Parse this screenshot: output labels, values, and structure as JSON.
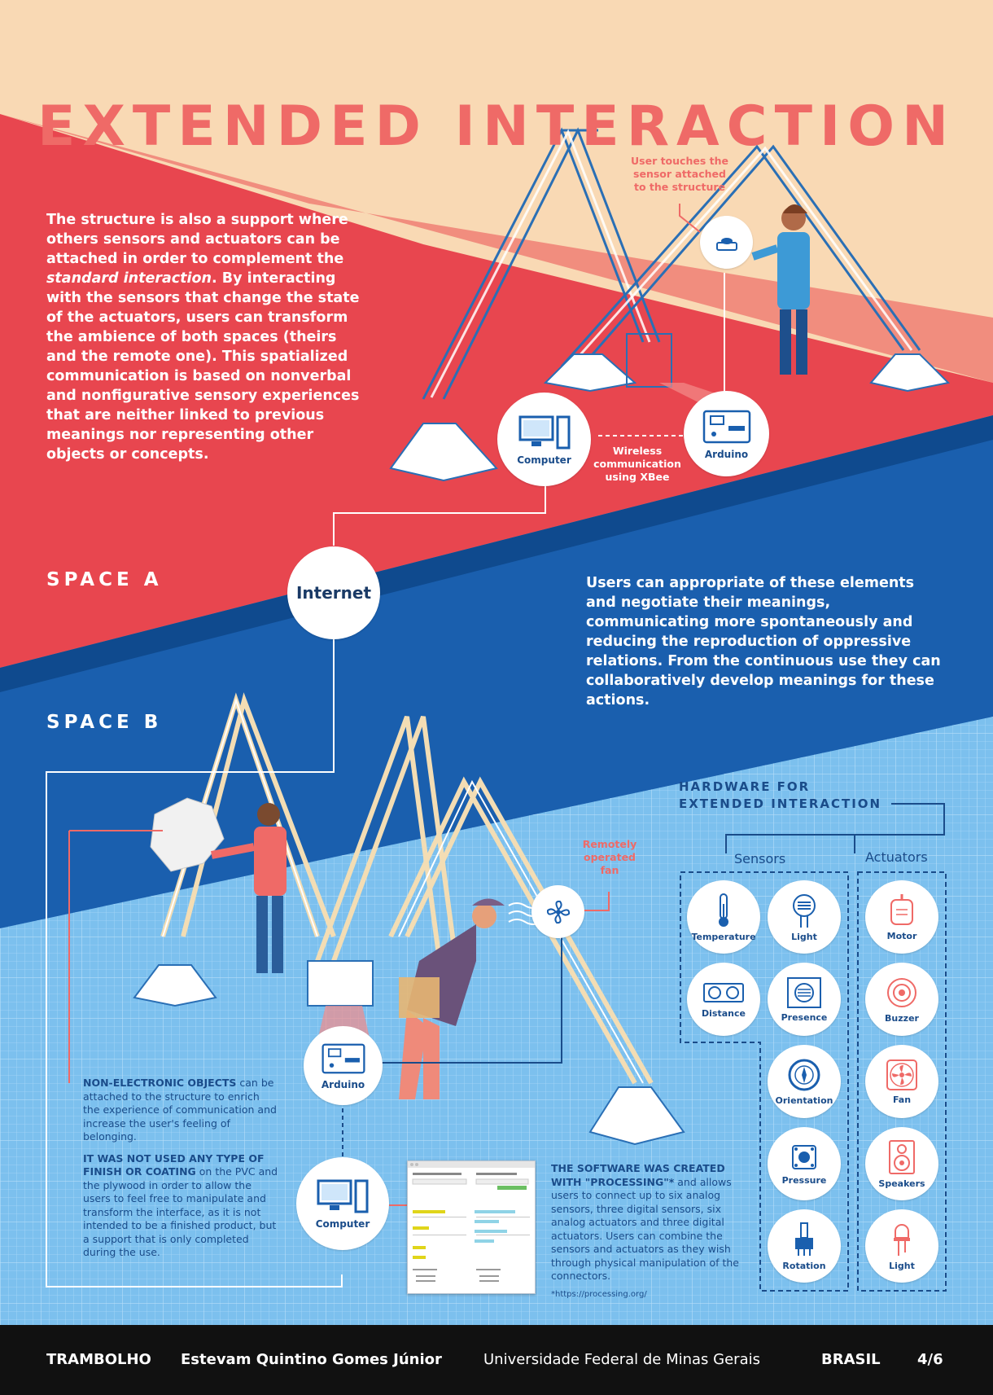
{
  "title": "EXTENDED INTERACTION",
  "intro": {
    "before_italic": "The structure is also a support where others sensors and actuators can be attached in order to complement the ",
    "italic": "standard interaction",
    "after_italic": ". By interacting with the sensors that change the state of the actuators, users can transform the ambience of both spaces (theirs and the remote one). This spatialized communication is based on nonverbal and nonfigurative sensory experiences that are neither linked to previous meanings nor representing other objects or concepts."
  },
  "space_a": "SPACE A",
  "space_b": "SPACE B",
  "appropriation_text": "Users can appropriate of these elements and negotiate their meanings, communicating more spontaneously and reducing the reproduction of oppressive relations. From the continuous use they can collaboratively develop meanings for these actions.",
  "nodes": {
    "computer_a": "Computer",
    "arduino_a": "Arduino",
    "internet": "Internet",
    "arduino_b": "Arduino",
    "computer_b": "Computer"
  },
  "callouts": {
    "user_touch": "User touches the sensor attached to the structure",
    "wireless": "Wireless communication using XBee",
    "remote_fan": "Remotely operated fan"
  },
  "hardware": {
    "title_line1": "HARDWARE FOR",
    "title_line2": "EXTENDED INTERACTION",
    "sensors_label": "Sensors",
    "actuators_label": "Actuators",
    "sensors": [
      {
        "label": "Temperature",
        "icon": "thermometer-icon"
      },
      {
        "label": "Light",
        "icon": "photoresistor-icon"
      },
      {
        "label": "Distance",
        "icon": "ultrasonic-sensor-icon"
      },
      {
        "label": "Presence",
        "icon": "pir-sensor-icon"
      },
      {
        "label": "Orientation",
        "icon": "compass-icon"
      },
      {
        "label": "Pressure",
        "icon": "push-button-icon"
      },
      {
        "label": "Rotation",
        "icon": "potentiometer-icon"
      }
    ],
    "actuators": [
      {
        "label": "Motor",
        "icon": "motor-icon"
      },
      {
        "label": "Buzzer",
        "icon": "buzzer-icon"
      },
      {
        "label": "Fan",
        "icon": "fan-icon"
      },
      {
        "label": "Speakers",
        "icon": "speaker-icon"
      },
      {
        "label": "Light",
        "icon": "led-icon"
      }
    ]
  },
  "non_electronic": {
    "bold1": "NON-ELECTRONIC OBJECTS",
    "text1": " can be attached to the structure to enrich the experience of communication and increase the user's feeling of belonging.",
    "bold2": "IT WAS NOT USED ANY TYPE OF FINISH OR COATING",
    "text2": " on the PVC and the plywood in order to allow the users to feel free to manipulate and transform the interface, as it is not intended to be a finished product, but a support that is only completed during the use."
  },
  "software": {
    "bold": "THE SOFTWARE WAS CREATED WITH \"PROCESSING\"*",
    "text": " and allows users to connect up to six analog sensors, three digital sensors, six analog actuators and three digital actuators. Users can combine the sensors and actuators as they wish through physical manipulation of the connectors.",
    "footnote": "*https://processing.org/"
  },
  "footer": {
    "project": "TRAMBOLHO",
    "author": "Estevam Quintino Gomes Júnior",
    "university": "Universidade Federal de Minas Gerais",
    "country": "BRASIL",
    "page": "4/6"
  },
  "colors": {
    "peach": "#f9d9b4",
    "coral": "#ef6a67",
    "red": "#e8464f",
    "blue": "#1a5fae",
    "light_blue": "#7cc0ee",
    "navy": "#1a4c8a"
  }
}
